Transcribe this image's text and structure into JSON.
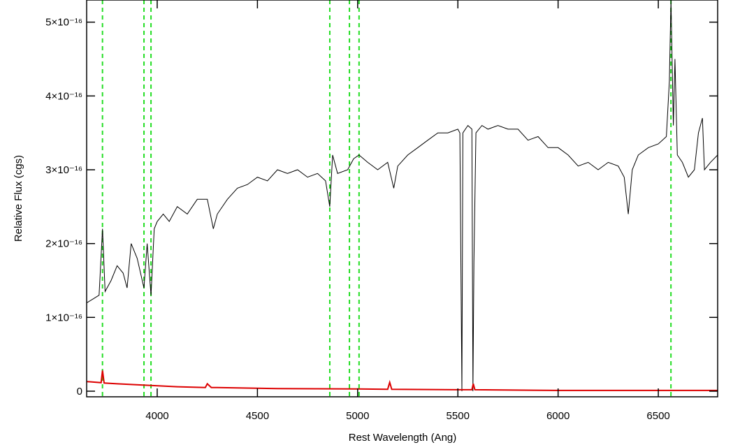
{
  "chart_data": {
    "type": "line",
    "xlabel": "Rest Wavelength (Ang)",
    "ylabel": "Relative Flux (cgs)",
    "xlim": [
      3648,
      6796
    ],
    "ylim": [
      -7.6e-18,
      5.3e-16
    ],
    "xticks": [
      4000,
      4500,
      5000,
      5500,
      6000,
      6500
    ],
    "yticks": [
      0,
      {
        "value": 1e-16,
        "label": "1×10⁻¹⁶"
      },
      {
        "value": 2e-16,
        "label": "2×10⁻¹⁶"
      },
      {
        "value": 3e-16,
        "label": "3×10⁻¹⁶"
      },
      {
        "value": 4e-16,
        "label": "4×10⁻¹⁶"
      },
      {
        "value": 5e-16,
        "label": "5×10⁻¹⁶"
      }
    ],
    "vlines": {
      "color": "#22dd22",
      "x": [
        3727,
        3934,
        3969,
        4861,
        4959,
        5007,
        6563
      ]
    },
    "series": [
      {
        "color": "#000000",
        "x": [
          3650,
          3680,
          3710,
          3727,
          3740,
          3770,
          3800,
          3830,
          3850,
          3870,
          3900,
          3934,
          3950,
          3969,
          3985,
          4000,
          4030,
          4060,
          4100,
          4150,
          4200,
          4250,
          4280,
          4300,
          4350,
          4400,
          4450,
          4500,
          4550,
          4600,
          4650,
          4700,
          4750,
          4800,
          4840,
          4861,
          4875,
          4900,
          4950,
          4980,
          5007,
          5050,
          5100,
          5150,
          5180,
          5200,
          5250,
          5300,
          5350,
          5400,
          5450,
          5500,
          5510,
          5520,
          5525,
          5550,
          5570,
          5575,
          5580,
          5590,
          5620,
          5650,
          5700,
          5750,
          5800,
          5850,
          5900,
          5950,
          6000,
          6050,
          6100,
          6150,
          6200,
          6250,
          6300,
          6330,
          6350,
          6370,
          6400,
          6450,
          6500,
          6540,
          6555,
          6563,
          6575,
          6583,
          6595,
          6620,
          6650,
          6680,
          6700,
          6720,
          6730,
          6760,
          6796
        ],
        "values": [
          1.2e-16,
          1.25e-16,
          1.3e-16,
          2.2e-16,
          1.35e-16,
          1.5e-16,
          1.7e-16,
          1.6e-16,
          1.4e-16,
          2e-16,
          1.8e-16,
          1.4e-16,
          2e-16,
          1.3e-16,
          2.2e-16,
          2.3e-16,
          2.4e-16,
          2.3e-16,
          2.5e-16,
          2.4e-16,
          2.6e-16,
          2.6e-16,
          2.2e-16,
          2.4e-16,
          2.6e-16,
          2.75e-16,
          2.8e-16,
          2.9e-16,
          2.85e-16,
          3e-16,
          2.95e-16,
          3e-16,
          2.9e-16,
          2.95e-16,
          2.85e-16,
          2.5e-16,
          3.2e-16,
          2.95e-16,
          3e-16,
          3.15e-16,
          3.2e-16,
          3.1e-16,
          3e-16,
          3.1e-16,
          2.75e-16,
          3.05e-16,
          3.2e-16,
          3.3e-16,
          3.4e-16,
          3.5e-16,
          3.5e-16,
          3.55e-16,
          3.5e-16,
          0,
          3.5e-16,
          3.6e-16,
          3.55e-16,
          0,
          1.75e-16,
          3.5e-16,
          3.6e-16,
          3.55e-16,
          3.6e-16,
          3.55e-16,
          3.55e-16,
          3.4e-16,
          3.45e-16,
          3.3e-16,
          3.3e-16,
          3.2e-16,
          3.05e-16,
          3.1e-16,
          3e-16,
          3.1e-16,
          3.05e-16,
          2.9e-16,
          2.4e-16,
          3e-16,
          3.2e-16,
          3.3e-16,
          3.35e-16,
          3.45e-16,
          4.2e-16,
          5.3e-16,
          3.6e-16,
          4.5e-16,
          3.2e-16,
          3.1e-16,
          2.9e-16,
          3e-16,
          3.5e-16,
          3.7e-16,
          3e-16,
          3.1e-16,
          3.2e-16
        ]
      },
      {
        "color": "#dd0000",
        "x": [
          3650,
          3720,
          3727,
          3735,
          3800,
          3950,
          4100,
          4240,
          4250,
          4270,
          4300,
          4600,
          5000,
          5150,
          5160,
          5170,
          5500,
          5570,
          5577,
          5585,
          6000,
          6500,
          6796
        ],
        "values": [
          1.3e-17,
          1.15e-17,
          2.8e-17,
          1.1e-17,
          1e-17,
          8e-18,
          6e-18,
          5e-18,
          1e-17,
          5e-18,
          5e-18,
          3.5e-18,
          3e-18,
          2.5e-18,
          1.2e-17,
          2.5e-18,
          2e-18,
          2e-18,
          1e-17,
          2e-18,
          1e-18,
          1e-18,
          1e-18
        ]
      }
    ]
  }
}
